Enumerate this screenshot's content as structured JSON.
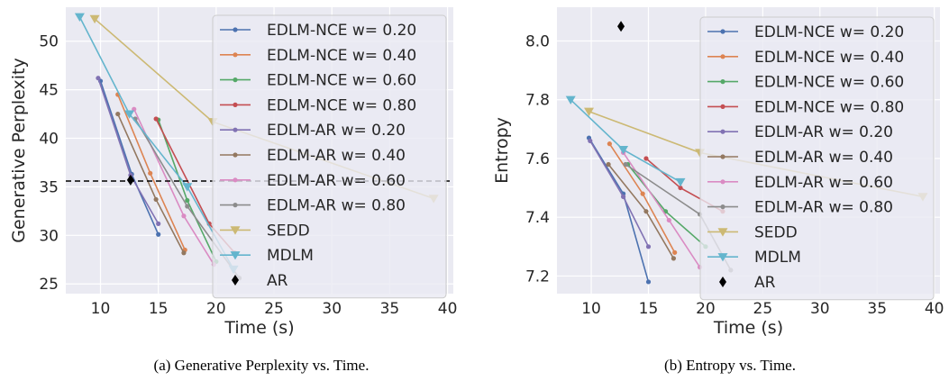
{
  "figure": {
    "caption_a": "(a) Generative Perplexity vs. Time.",
    "caption_b": "(b) Entropy vs. Time."
  },
  "chart_data": [
    {
      "type": "line",
      "xlabel": "Time (s)",
      "ylabel": "Generative Perplexity",
      "xlim": [
        7,
        40.5
      ],
      "ylim": [
        24,
        53.5
      ],
      "xticks": [
        10,
        15,
        20,
        25,
        30,
        35,
        40
      ],
      "yticks": [
        25,
        30,
        35,
        40,
        45,
        50
      ],
      "grid": true,
      "legend_position": "top-right",
      "hline": {
        "y": 35.6,
        "style": "dashed",
        "color": "#000000"
      },
      "series": [
        {
          "name": "EDLM-NCE w= 0.20",
          "color": "#4C72B0",
          "marker": "dot",
          "points": [
            [
              10.0,
              45.9
            ],
            [
              12.7,
              36.3
            ],
            [
              15.0,
              30.1
            ]
          ]
        },
        {
          "name": "EDLM-NCE w= 0.40",
          "color": "#DD8452",
          "marker": "dot",
          "points": [
            [
              11.5,
              44.5
            ],
            [
              14.3,
              36.4
            ],
            [
              17.3,
              28.5
            ]
          ]
        },
        {
          "name": "EDLM-NCE w= 0.60",
          "color": "#55A868",
          "marker": "dot",
          "points": [
            [
              15.0,
              41.9
            ],
            [
              17.5,
              33.6
            ],
            [
              20.0,
              27.3
            ]
          ]
        },
        {
          "name": "EDLM-NCE w= 0.80",
          "color": "#C44E52",
          "marker": "dot",
          "points": [
            [
              14.8,
              42.0
            ],
            [
              19.4,
              31.2
            ],
            [
              21.6,
              28.2
            ]
          ]
        },
        {
          "name": "EDLM-AR w= 0.20",
          "color": "#8172B3",
          "marker": "dot",
          "points": [
            [
              9.8,
              46.2
            ],
            [
              12.6,
              36.2
            ],
            [
              15.0,
              31.2
            ]
          ]
        },
        {
          "name": "EDLM-AR w= 0.40",
          "color": "#937860",
          "marker": "dot",
          "points": [
            [
              11.5,
              42.5
            ],
            [
              14.8,
              33.7
            ],
            [
              17.2,
              28.2
            ]
          ]
        },
        {
          "name": "EDLM-AR w= 0.60",
          "color": "#DA8BC3",
          "marker": "dot",
          "points": [
            [
              12.9,
              43.0
            ],
            [
              17.2,
              32.0
            ],
            [
              19.8,
              27.0
            ]
          ]
        },
        {
          "name": "EDLM-AR w= 0.80",
          "color": "#8C8C8C",
          "marker": "dot",
          "points": [
            [
              13.0,
              42.0
            ],
            [
              17.5,
              33.0
            ],
            [
              22.0,
              25.6
            ]
          ]
        },
        {
          "name": "SEDD",
          "color": "#CCB974",
          "marker": "triangle-down",
          "points": [
            [
              9.5,
              52.3
            ],
            [
              19.7,
              41.7
            ],
            [
              38.8,
              33.8
            ]
          ]
        },
        {
          "name": "MDLM",
          "color": "#64B5CD",
          "marker": "triangle-down",
          "points": [
            [
              8.2,
              52.5
            ],
            [
              12.5,
              42.5
            ],
            [
              17.5,
              35.0
            ],
            [
              21.5,
              26.5
            ]
          ]
        },
        {
          "name": "AR",
          "color": "#000000",
          "marker": "diamond",
          "points": [
            [
              12.6,
              35.7
            ]
          ]
        }
      ]
    },
    {
      "type": "line",
      "xlabel": "Time (s)",
      "ylabel": "Entropy",
      "xlim": [
        7,
        40.5
      ],
      "ylim": [
        7.14,
        8.115
      ],
      "xticks": [
        10,
        15,
        20,
        25,
        30,
        35,
        40
      ],
      "yticks": [
        7.2,
        7.4,
        7.6,
        7.8,
        8.0
      ],
      "grid": true,
      "legend_position": "top-right",
      "series": [
        {
          "name": "EDLM-NCE w= 0.20",
          "color": "#4C72B0",
          "marker": "dot",
          "points": [
            [
              9.8,
              7.67
            ],
            [
              12.8,
              7.48
            ],
            [
              15.0,
              7.18
            ]
          ]
        },
        {
          "name": "EDLM-NCE w= 0.40",
          "color": "#DD8452",
          "marker": "dot",
          "points": [
            [
              11.6,
              7.65
            ],
            [
              14.5,
              7.48
            ],
            [
              17.3,
              7.28
            ]
          ]
        },
        {
          "name": "EDLM-NCE w= 0.60",
          "color": "#55A868",
          "marker": "dot",
          "points": [
            [
              13.2,
              7.58
            ],
            [
              16.5,
              7.42
            ],
            [
              20.0,
              7.3
            ]
          ]
        },
        {
          "name": "EDLM-NCE w= 0.80",
          "color": "#C44E52",
          "marker": "dot",
          "points": [
            [
              14.8,
              7.6
            ],
            [
              17.8,
              7.5
            ],
            [
              21.5,
              7.42
            ]
          ]
        },
        {
          "name": "EDLM-AR w= 0.20",
          "color": "#8172B3",
          "marker": "dot",
          "points": [
            [
              9.9,
              7.66
            ],
            [
              12.8,
              7.47
            ],
            [
              15.0,
              7.3
            ]
          ]
        },
        {
          "name": "EDLM-AR w= 0.40",
          "color": "#937860",
          "marker": "dot",
          "points": [
            [
              11.5,
              7.58
            ],
            [
              14.8,
              7.42
            ],
            [
              17.2,
              7.26
            ]
          ]
        },
        {
          "name": "EDLM-AR w= 0.60",
          "color": "#DA8BC3",
          "marker": "dot",
          "points": [
            [
              12.8,
              7.62
            ],
            [
              16.8,
              7.39
            ],
            [
              19.5,
              7.23
            ]
          ]
        },
        {
          "name": "EDLM-AR w= 0.80",
          "color": "#8C8C8C",
          "marker": "dot",
          "points": [
            [
              13.0,
              7.58
            ],
            [
              19.5,
              7.41
            ],
            [
              22.2,
              7.22
            ]
          ]
        },
        {
          "name": "SEDD",
          "color": "#CCB974",
          "marker": "triangle-down",
          "points": [
            [
              9.8,
              7.76
            ],
            [
              19.5,
              7.62
            ],
            [
              39.0,
              7.47
            ]
          ]
        },
        {
          "name": "MDLM",
          "color": "#64B5CD",
          "marker": "triangle-down",
          "points": [
            [
              8.2,
              7.8
            ],
            [
              12.8,
              7.63
            ],
            [
              17.8,
              7.52
            ]
          ]
        },
        {
          "name": "AR",
          "color": "#000000",
          "marker": "diamond",
          "points": [
            [
              12.6,
              8.05
            ]
          ]
        }
      ]
    }
  ]
}
